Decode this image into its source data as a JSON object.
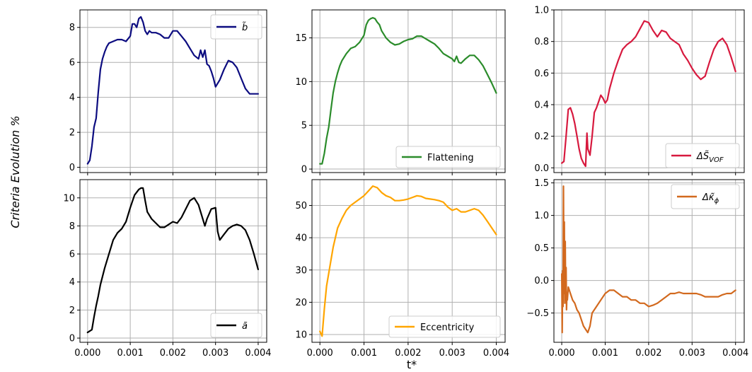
{
  "figure": {
    "ylabel": "Criteria Evolution %",
    "xlabel": "t*"
  },
  "chart_data": [
    {
      "type": "line",
      "legend": "b̃",
      "color": "#0c0c80",
      "legend_loc": "upper right",
      "xlim": [
        -0.00018,
        0.0042
      ],
      "ylim": [
        -0.3,
        9.0
      ],
      "xticks": [
        0.0,
        0.001,
        0.002,
        0.003,
        0.004
      ],
      "yticks": [
        0,
        2,
        4,
        6,
        8
      ],
      "x": [
        0.0,
        5e-05,
        0.0001,
        0.00015,
        0.0002,
        0.00025,
        0.0003,
        0.00035,
        0.0004,
        0.00045,
        0.0005,
        0.0006,
        0.0007,
        0.0008,
        0.0009,
        0.001,
        0.00105,
        0.0011,
        0.00115,
        0.0012,
        0.00125,
        0.0013,
        0.00135,
        0.0014,
        0.00145,
        0.0015,
        0.0016,
        0.0017,
        0.0018,
        0.0019,
        0.002,
        0.0021,
        0.0022,
        0.0023,
        0.0024,
        0.0025,
        0.0026,
        0.00265,
        0.0027,
        0.00275,
        0.0028,
        0.00285,
        0.0029,
        0.00295,
        0.003,
        0.0031,
        0.0032,
        0.0033,
        0.0034,
        0.0035,
        0.0036,
        0.0037,
        0.0038,
        0.0039,
        0.004
      ],
      "y": [
        0.2,
        0.4,
        1.2,
        2.3,
        2.8,
        4.3,
        5.6,
        6.2,
        6.6,
        6.9,
        7.1,
        7.2,
        7.3,
        7.3,
        7.2,
        7.5,
        8.2,
        8.2,
        8.0,
        8.5,
        8.6,
        8.3,
        7.8,
        7.6,
        7.8,
        7.7,
        7.7,
        7.6,
        7.4,
        7.4,
        7.8,
        7.8,
        7.5,
        7.2,
        6.8,
        6.4,
        6.2,
        6.7,
        6.3,
        6.7,
        5.9,
        5.8,
        5.5,
        5.1,
        4.6,
        5.0,
        5.6,
        6.1,
        6.0,
        5.7,
        5.1,
        4.5,
        4.2,
        4.2,
        4.2
      ]
    },
    {
      "type": "line",
      "legend": "Flattening",
      "color": "#2b8c2b",
      "legend_loc": "lower right",
      "xlim": [
        -0.00018,
        0.0042
      ],
      "ylim": [
        -0.4,
        18.2
      ],
      "xticks": [
        0.0,
        0.001,
        0.002,
        0.003,
        0.004
      ],
      "yticks": [
        0,
        5,
        10,
        15
      ],
      "x": [
        0.0,
        5e-05,
        0.0001,
        0.00015,
        0.0002,
        0.00025,
        0.0003,
        0.00035,
        0.0004,
        0.00045,
        0.0005,
        0.0006,
        0.0007,
        0.0008,
        0.0009,
        0.001,
        0.00105,
        0.0011,
        0.00115,
        0.0012,
        0.00125,
        0.0013,
        0.00135,
        0.0014,
        0.0015,
        0.0016,
        0.0017,
        0.0018,
        0.0019,
        0.002,
        0.0021,
        0.0022,
        0.0023,
        0.0024,
        0.0025,
        0.0026,
        0.0027,
        0.0028,
        0.0029,
        0.003,
        0.00305,
        0.0031,
        0.00315,
        0.0032,
        0.0033,
        0.0034,
        0.0035,
        0.0036,
        0.0037,
        0.0038,
        0.0039,
        0.004
      ],
      "y": [
        0.6,
        0.6,
        1.8,
        3.5,
        4.8,
        6.8,
        8.7,
        10.0,
        11.0,
        11.8,
        12.4,
        13.2,
        13.8,
        14.0,
        14.5,
        15.3,
        16.5,
        17.0,
        17.2,
        17.3,
        17.2,
        16.8,
        16.5,
        15.8,
        15.0,
        14.5,
        14.2,
        14.3,
        14.6,
        14.8,
        14.9,
        15.2,
        15.2,
        14.9,
        14.6,
        14.3,
        13.8,
        13.2,
        12.9,
        12.6,
        12.3,
        12.9,
        12.2,
        12.1,
        12.6,
        13.0,
        13.0,
        12.5,
        11.8,
        10.8,
        9.8,
        8.7
      ]
    },
    {
      "type": "line",
      "legend": "ΔS̃VOF",
      "color": "#d7193e",
      "legend_loc": "lower right",
      "xlim": [
        -0.00018,
        0.0042
      ],
      "ylim": [
        -0.03,
        1.0
      ],
      "xticks": [
        0.0,
        0.001,
        0.002,
        0.003,
        0.004
      ],
      "yticks": [
        0.0,
        0.2,
        0.4,
        0.6,
        0.8,
        1.0
      ],
      "x": [
        0.0,
        5e-05,
        0.0001,
        0.00015,
        0.0002,
        0.00025,
        0.0003,
        0.00035,
        0.0004,
        0.00045,
        0.0005,
        0.00055,
        0.00058,
        0.0006,
        0.00065,
        0.0007,
        0.00075,
        0.0008,
        0.00085,
        0.0009,
        0.00095,
        0.001,
        0.00105,
        0.0011,
        0.0012,
        0.0013,
        0.0014,
        0.0015,
        0.0016,
        0.0017,
        0.0018,
        0.0019,
        0.002,
        0.0021,
        0.0022,
        0.0023,
        0.0024,
        0.0025,
        0.0026,
        0.0027,
        0.0028,
        0.0029,
        0.003,
        0.0031,
        0.0032,
        0.0033,
        0.0034,
        0.0035,
        0.0036,
        0.0037,
        0.0038,
        0.0039,
        0.004
      ],
      "y": [
        0.03,
        0.04,
        0.2,
        0.37,
        0.38,
        0.34,
        0.28,
        0.2,
        0.12,
        0.06,
        0.03,
        0.01,
        0.22,
        0.12,
        0.08,
        0.2,
        0.35,
        0.38,
        0.42,
        0.46,
        0.44,
        0.41,
        0.43,
        0.5,
        0.6,
        0.68,
        0.75,
        0.78,
        0.8,
        0.83,
        0.88,
        0.93,
        0.92,
        0.87,
        0.83,
        0.87,
        0.86,
        0.82,
        0.8,
        0.78,
        0.72,
        0.68,
        0.63,
        0.59,
        0.56,
        0.58,
        0.67,
        0.75,
        0.8,
        0.82,
        0.78,
        0.7,
        0.61
      ]
    },
    {
      "type": "line",
      "legend": "ã",
      "color": "#000000",
      "legend_loc": "lower right",
      "xlim": [
        -0.00018,
        0.0042
      ],
      "ylim": [
        -0.3,
        11.3
      ],
      "xticks": [
        0.0,
        0.001,
        0.002,
        0.003,
        0.004
      ],
      "yticks": [
        0,
        2,
        4,
        6,
        8,
        10
      ],
      "x": [
        0.0,
        5e-05,
        0.0001,
        0.00015,
        0.0002,
        0.00025,
        0.0003,
        0.0004,
        0.0005,
        0.0006,
        0.0007,
        0.0008,
        0.0009,
        0.001,
        0.0011,
        0.0012,
        0.00125,
        0.0013,
        0.00135,
        0.0014,
        0.0015,
        0.0016,
        0.0017,
        0.0018,
        0.0019,
        0.002,
        0.0021,
        0.0022,
        0.0023,
        0.0024,
        0.0025,
        0.0026,
        0.0027,
        0.00275,
        0.0028,
        0.0029,
        0.003,
        0.00305,
        0.0031,
        0.0032,
        0.0033,
        0.0034,
        0.0035,
        0.0036,
        0.0037,
        0.0038,
        0.0039,
        0.004
      ],
      "y": [
        0.4,
        0.5,
        0.6,
        1.5,
        2.3,
        3.0,
        3.8,
        5.0,
        6.0,
        7.0,
        7.5,
        7.8,
        8.3,
        9.3,
        10.2,
        10.6,
        10.7,
        10.7,
        9.8,
        9.0,
        8.5,
        8.2,
        7.9,
        7.9,
        8.1,
        8.3,
        8.2,
        8.6,
        9.2,
        9.8,
        10.0,
        9.5,
        8.5,
        8.0,
        8.5,
        9.2,
        9.3,
        7.6,
        7.0,
        7.4,
        7.8,
        8.0,
        8.1,
        8.0,
        7.7,
        7.0,
        6.0,
        4.9
      ]
    },
    {
      "type": "line",
      "legend": "Eccentricity",
      "color": "#ffa500",
      "legend_loc": "lower right",
      "xlim": [
        -0.00018,
        0.0042
      ],
      "ylim": [
        7.6,
        58.0
      ],
      "xticks": [
        0.0,
        0.001,
        0.002,
        0.003,
        0.004
      ],
      "yticks": [
        10,
        20,
        30,
        40,
        50
      ],
      "x": [
        0.0,
        5e-05,
        0.0001,
        0.00015,
        0.0002,
        0.00025,
        0.0003,
        0.0004,
        0.0005,
        0.0006,
        0.0007,
        0.0008,
        0.0009,
        0.001,
        0.0011,
        0.0012,
        0.0013,
        0.0014,
        0.0015,
        0.0016,
        0.0017,
        0.0018,
        0.0019,
        0.002,
        0.0021,
        0.0022,
        0.0023,
        0.0024,
        0.0025,
        0.0026,
        0.0027,
        0.0028,
        0.0029,
        0.003,
        0.0031,
        0.0032,
        0.0033,
        0.0034,
        0.0035,
        0.0036,
        0.0037,
        0.0038,
        0.0039,
        0.004
      ],
      "y": [
        11.0,
        9.5,
        18.0,
        25.0,
        29.0,
        33.0,
        37.0,
        43.0,
        46.0,
        48.5,
        50.0,
        51.0,
        52.0,
        53.0,
        54.5,
        56.0,
        55.5,
        54.0,
        53.0,
        52.5,
        51.5,
        51.5,
        51.7,
        52.0,
        52.5,
        53.0,
        52.8,
        52.2,
        52.0,
        51.8,
        51.5,
        51.0,
        49.5,
        48.5,
        49.0,
        48.0,
        48.0,
        48.5,
        49.0,
        48.5,
        47.0,
        45.0,
        43.0,
        41.0
      ]
    },
    {
      "type": "line",
      "legend": "Δκ̃ϕ",
      "color": "#d2691e",
      "legend_loc": "upper right",
      "xlim": [
        -0.00018,
        0.0042
      ],
      "ylim": [
        -0.95,
        1.55
      ],
      "xticks": [
        0.0,
        0.001,
        0.002,
        0.003,
        0.004
      ],
      "yticks": [
        -0.5,
        0.0,
        0.5,
        1.0,
        1.5
      ],
      "x": [
        0.0,
        1e-05,
        2e-05,
        3e-05,
        4e-05,
        5e-05,
        6e-05,
        7e-05,
        8e-05,
        9e-05,
        0.0001,
        0.00011,
        0.00012,
        0.00013,
        0.00015,
        0.0002,
        0.00025,
        0.0003,
        0.00035,
        0.0004,
        0.00045,
        0.0005,
        0.00055,
        0.0006,
        0.00065,
        0.0007,
        0.0008,
        0.0009,
        0.001,
        0.0011,
        0.0012,
        0.0013,
        0.0014,
        0.0015,
        0.0016,
        0.0017,
        0.0018,
        0.0019,
        0.002,
        0.0021,
        0.0022,
        0.0023,
        0.0024,
        0.0025,
        0.0026,
        0.0027,
        0.0028,
        0.0029,
        0.003,
        0.0031,
        0.0032,
        0.0033,
        0.0034,
        0.0035,
        0.0036,
        0.0037,
        0.0038,
        0.0039,
        0.004
      ],
      "y": [
        0.1,
        -0.8,
        0.15,
        -0.4,
        1.45,
        -0.2,
        0.9,
        -0.35,
        0.6,
        -0.3,
        0.2,
        -0.45,
        -0.2,
        -0.3,
        -0.1,
        -0.2,
        -0.3,
        -0.35,
        -0.45,
        -0.5,
        -0.6,
        -0.7,
        -0.75,
        -0.8,
        -0.7,
        -0.5,
        -0.4,
        -0.3,
        -0.2,
        -0.15,
        -0.15,
        -0.2,
        -0.25,
        -0.25,
        -0.3,
        -0.3,
        -0.35,
        -0.35,
        -0.4,
        -0.38,
        -0.35,
        -0.3,
        -0.25,
        -0.2,
        -0.2,
        -0.18,
        -0.2,
        -0.2,
        -0.2,
        -0.2,
        -0.22,
        -0.25,
        -0.25,
        -0.25,
        -0.25,
        -0.22,
        -0.2,
        -0.2,
        -0.15
      ]
    }
  ]
}
